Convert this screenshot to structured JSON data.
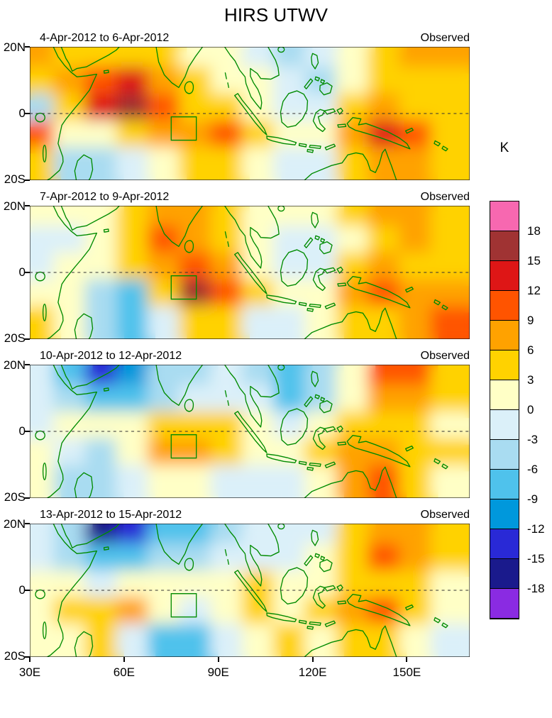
{
  "title": "HIRS UTWV",
  "panels": [
    {
      "date_range": "4-Apr-2012 to 6-Apr-2012",
      "source_label": "Observed"
    },
    {
      "date_range": "7-Apr-2012 to 9-Apr-2012",
      "source_label": "Observed"
    },
    {
      "date_range": "10-Apr-2012 to 12-Apr-2012",
      "source_label": "Observed"
    },
    {
      "date_range": "13-Apr-2012 to 15-Apr-2012",
      "source_label": "Observed"
    }
  ],
  "axes": {
    "x_ticks": [
      "30E",
      "60E",
      "90E",
      "120E",
      "150E"
    ],
    "y_ticks": [
      "20N",
      "0",
      "20S"
    ]
  },
  "colorbar": {
    "title": "K",
    "tick_labels": [
      "18",
      "15",
      "12",
      "9",
      "6",
      "3",
      "0",
      "-3",
      "-6",
      "-9",
      "-12",
      "-15",
      "-18"
    ],
    "colors_top_to_bottom": [
      "#F768B0",
      "#A03333",
      "#DE1616",
      "#FF5400",
      "#FFA200",
      "#FFD200",
      "#FFFFC6",
      "#DBF0F9",
      "#A9DCF1",
      "#4FC2EC",
      "#0098DC",
      "#2929D6",
      "#1A1A8C",
      "#8A2BE2"
    ]
  },
  "chart_data": {
    "type": "heatmap",
    "title": "HIRS UTWV",
    "units": "K",
    "legend_position": "right",
    "lon_range": [
      30,
      170
    ],
    "lat_range": [
      -20,
      20
    ],
    "contour_levels": [
      -18,
      -15,
      -12,
      -9,
      -6,
      -3,
      0,
      3,
      6,
      9,
      12,
      15,
      18
    ],
    "palette_low_to_high": [
      "#8A2BE2",
      "#1A1A8C",
      "#2929D6",
      "#0098DC",
      "#4FC2EC",
      "#A9DCF1",
      "#DBF0F9",
      "#FFFFC6",
      "#FFD200",
      "#FFA200",
      "#FF5400",
      "#DE1616",
      "#A03333",
      "#F768B0"
    ],
    "grid_lon_centers": [
      35,
      45,
      55,
      65,
      75,
      85,
      95,
      105,
      115,
      125,
      135,
      145,
      155,
      165
    ],
    "grid_lat_centers": [
      16,
      8,
      0,
      -8,
      -16
    ],
    "region_box": {
      "lon": [
        75,
        83
      ],
      "lat": [
        -8,
        -1
      ]
    },
    "equator_line": "dashed",
    "panels": [
      {
        "label": "4-Apr-2012 to 6-Apr-2012",
        "tag": "Observed",
        "values_K": [
          [
            8,
            5,
            4,
            4,
            3,
            1,
            0,
            -3,
            -4,
            -2,
            2,
            5,
            7,
            6
          ],
          [
            4,
            6,
            11,
            13,
            7,
            4,
            2,
            0,
            -3,
            -4,
            0,
            3,
            5,
            5
          ],
          [
            -4,
            3,
            12,
            16,
            9,
            5,
            4,
            2,
            -2,
            -3,
            3,
            7,
            5,
            3
          ],
          [
            10,
            2,
            2,
            5,
            6,
            7,
            9,
            4,
            1,
            2,
            8,
            13,
            10,
            5
          ],
          [
            4,
            -5,
            -6,
            -2,
            2,
            3,
            3,
            1,
            -2,
            -1,
            3,
            6,
            6,
            5
          ]
        ]
      },
      {
        "label": "7-Apr-2012 to 9-Apr-2012",
        "tag": "Observed",
        "values_K": [
          [
            1,
            0,
            2,
            4,
            7,
            6,
            3,
            1,
            0,
            1,
            3,
            6,
            8,
            5
          ],
          [
            -2,
            -1,
            2,
            5,
            10,
            8,
            4,
            2,
            -2,
            -3,
            2,
            5,
            7,
            5
          ],
          [
            -1,
            0,
            2,
            4,
            6,
            9,
            6,
            2,
            -3,
            -2,
            3,
            6,
            5,
            4
          ],
          [
            2,
            0,
            -4,
            -7,
            3,
            15,
            10,
            3,
            0,
            2,
            6,
            11,
            7,
            8
          ],
          [
            3,
            1,
            -6,
            -9,
            -3,
            4,
            5,
            -1,
            -3,
            0,
            3,
            5,
            6,
            11
          ]
        ]
      },
      {
        "label": "10-Apr-2012 to 12-Apr-2012",
        "tag": "Observed",
        "values_K": [
          [
            -1,
            -7,
            -14,
            -11,
            -6,
            -4,
            -3,
            -4,
            -7,
            -5,
            2,
            9,
            10,
            4
          ],
          [
            -2,
            -4,
            -8,
            -7,
            -4,
            -2,
            -2,
            -3,
            -8,
            -4,
            1,
            6,
            6,
            3
          ],
          [
            -2,
            0,
            1,
            2,
            4,
            5,
            3,
            1,
            -2,
            1,
            3,
            4,
            3,
            2
          ],
          [
            1,
            -2,
            -4,
            1,
            6,
            7,
            3,
            2,
            2,
            5,
            7,
            6,
            4,
            3
          ],
          [
            2,
            -4,
            -6,
            -3,
            0,
            2,
            -1,
            -3,
            -1,
            2,
            6,
            9,
            4,
            1
          ]
        ]
      },
      {
        "label": "13-Apr-2012 to 15-Apr-2012",
        "tag": "Observed",
        "values_K": [
          [
            -1,
            -5,
            -17,
            -13,
            -7,
            -7,
            -4,
            -3,
            -3,
            -1,
            3,
            8,
            7,
            3
          ],
          [
            -2,
            -4,
            -9,
            -8,
            -5,
            -4,
            -3,
            -2,
            -1,
            1,
            4,
            9,
            6,
            3
          ],
          [
            0,
            1,
            -1,
            1,
            2,
            1,
            2,
            3,
            1,
            2,
            3,
            4,
            4,
            2
          ],
          [
            2,
            3,
            5,
            7,
            2,
            -2,
            2,
            3,
            2,
            3,
            6,
            9,
            4,
            1
          ],
          [
            1,
            2,
            3,
            -2,
            -8,
            -9,
            -3,
            1,
            3,
            2,
            4,
            5,
            2,
            -3
          ]
        ]
      }
    ]
  }
}
